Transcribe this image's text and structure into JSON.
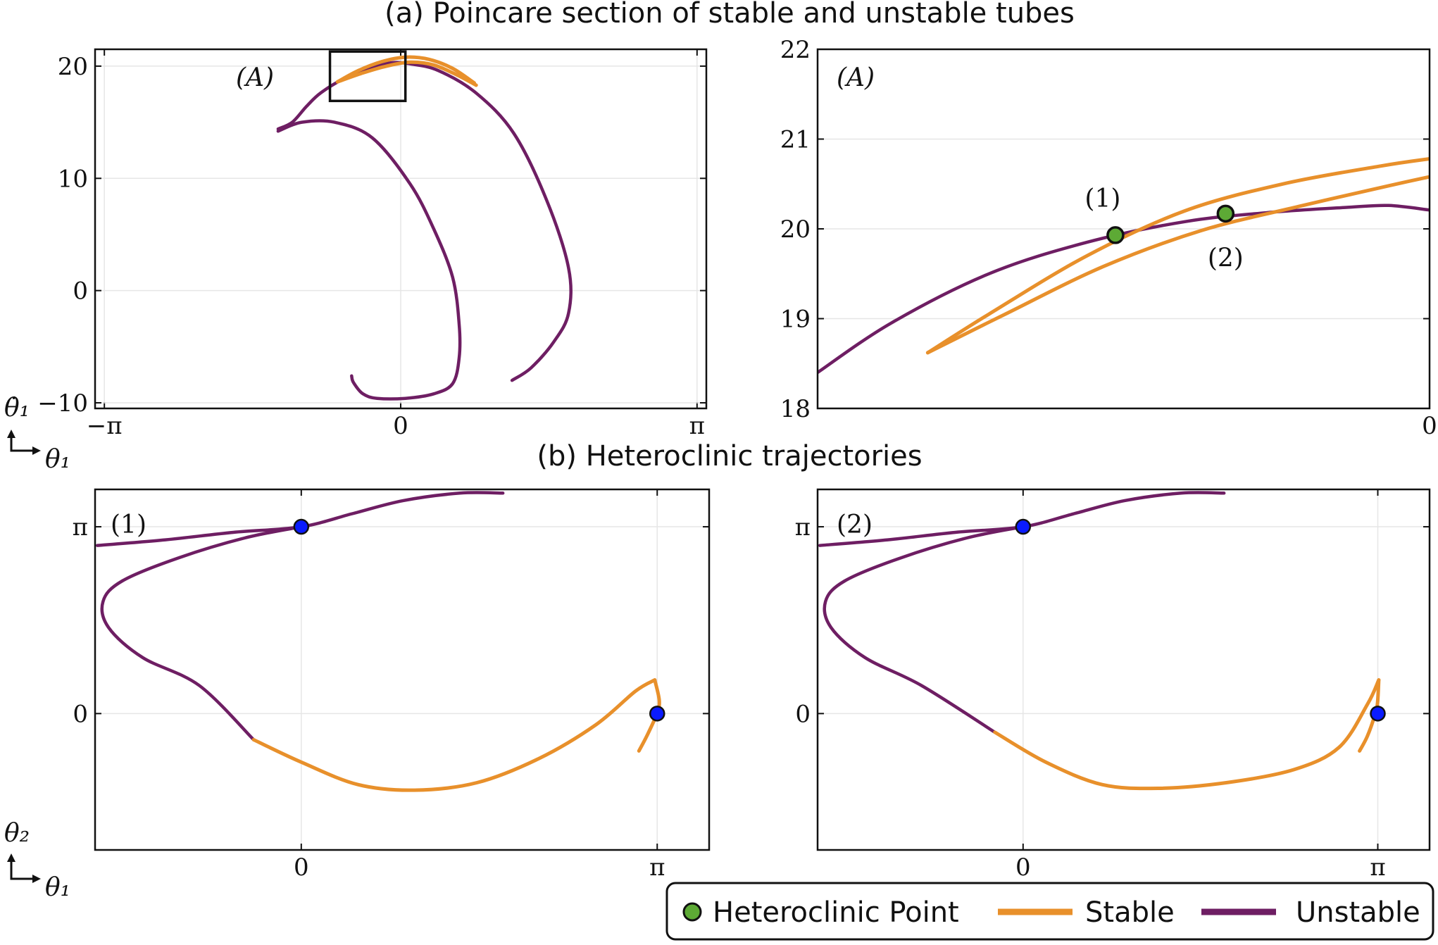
{
  "figure": {
    "title_a": "(a) Poincare section of stable and unstable tubes",
    "title_b": "(b) Heteroclinic trajectories"
  },
  "colors": {
    "stable": "#E8902B",
    "unstable": "#6E1E63",
    "heteroclinic_point": "#5DAA35",
    "equilibrium": "#0A1BFF",
    "box": "#111111"
  },
  "axes_labels": {
    "top_y": "θ̇₁",
    "top_x": "θ₁",
    "bottom_y": "θ₂",
    "bottom_x": "θ₁"
  },
  "legend": {
    "placement": "bottom-right",
    "items": [
      {
        "label": "Heteroclinic Point",
        "kind": "marker",
        "color_key": "heteroclinic_point"
      },
      {
        "label": "Stable",
        "kind": "line",
        "color_key": "stable"
      },
      {
        "label": "Unstable",
        "kind": "line",
        "color_key": "unstable"
      }
    ]
  },
  "chart_data": [
    {
      "id": "poincare_full",
      "type": "line",
      "panel_label": "(A)",
      "xlim": [
        -3.24,
        3.24
      ],
      "ylim": [
        -10.5,
        21.5
      ],
      "grid": true,
      "xticks": [
        {
          "value": -3.1416,
          "label": "−π"
        },
        {
          "value": 0,
          "label": "0"
        },
        {
          "value": 3.1416,
          "label": "π"
        }
      ],
      "yticks": [
        {
          "value": -10,
          "label": "−10"
        },
        {
          "value": 0,
          "label": "0"
        },
        {
          "value": 10,
          "label": "10"
        },
        {
          "value": 20,
          "label": "20"
        }
      ],
      "zoom_box": {
        "x": [
          -0.75,
          0.05
        ],
        "y": [
          16.9,
          21.3
        ]
      },
      "series": [
        {
          "role": "unstable",
          "points": [
            [
              -1.3,
              14.4
            ],
            [
              -1.15,
              15.0
            ],
            [
              -1.0,
              16.4
            ],
            [
              -0.85,
              17.6
            ],
            [
              -0.6,
              18.9
            ],
            [
              -0.35,
              19.8
            ],
            [
              -0.1,
              20.3
            ],
            [
              0.1,
              20.2
            ],
            [
              0.4,
              19.6
            ],
            [
              0.8,
              17.6
            ],
            [
              1.2,
              14.0
            ],
            [
              1.55,
              8.0
            ],
            [
              1.78,
              2.0
            ],
            [
              1.78,
              -2.0
            ],
            [
              1.62,
              -4.6
            ],
            [
              1.38,
              -6.9
            ],
            [
              1.18,
              -8.0
            ]
          ]
        },
        {
          "role": "unstable",
          "points": [
            [
              -1.3,
              14.2
            ],
            [
              -1.05,
              15.0
            ],
            [
              -0.7,
              15.0
            ],
            [
              -0.3,
              13.6
            ],
            [
              0.1,
              9.5
            ],
            [
              0.35,
              5.5
            ],
            [
              0.55,
              1.2
            ],
            [
              0.62,
              -3.0
            ],
            [
              0.62,
              -6.0
            ],
            [
              0.55,
              -8.3
            ],
            [
              0.35,
              -9.2
            ],
            [
              0.05,
              -9.6
            ],
            [
              -0.25,
              -9.6
            ],
            [
              -0.4,
              -9.2
            ],
            [
              -0.5,
              -8.2
            ],
            [
              -0.52,
              -7.6
            ]
          ]
        },
        {
          "role": "stable",
          "points": [
            [
              -0.67,
              18.6
            ],
            [
              -0.45,
              19.6
            ],
            [
              -0.2,
              20.4
            ],
            [
              0.05,
              20.8
            ],
            [
              0.3,
              20.6
            ],
            [
              0.55,
              19.8
            ],
            [
              0.78,
              18.5
            ]
          ]
        },
        {
          "role": "stable",
          "points": [
            [
              -0.67,
              18.6
            ],
            [
              -0.4,
              19.4
            ],
            [
              -0.15,
              20.0
            ],
            [
              0.1,
              20.35
            ],
            [
              0.35,
              20.1
            ],
            [
              0.6,
              19.2
            ],
            [
              0.8,
              18.3
            ]
          ]
        }
      ]
    },
    {
      "id": "poincare_zoom",
      "type": "line",
      "panel_label": "(A)",
      "xlim": [
        -0.75,
        0.0
      ],
      "ylim": [
        18,
        22
      ],
      "grid": true,
      "xticks": [
        {
          "value": 0,
          "label": "0"
        }
      ],
      "yticks": [
        {
          "value": 18,
          "label": "18"
        },
        {
          "value": 19,
          "label": "19"
        },
        {
          "value": 20,
          "label": "20"
        },
        {
          "value": 21,
          "label": "21"
        },
        {
          "value": 22,
          "label": "22"
        }
      ],
      "series": [
        {
          "role": "unstable",
          "points": [
            [
              -0.75,
              18.4
            ],
            [
              -0.66,
              18.95
            ],
            [
              -0.54,
              19.5
            ],
            [
              -0.42,
              19.85
            ],
            [
              -0.3,
              20.08
            ],
            [
              -0.2,
              20.18
            ],
            [
              -0.1,
              20.24
            ],
            [
              -0.05,
              20.26
            ],
            [
              0.0,
              20.21
            ]
          ]
        },
        {
          "role": "stable",
          "points": [
            [
              -0.615,
              18.62
            ],
            [
              -0.54,
              19.05
            ],
            [
              -0.42,
              19.7
            ],
            [
              -0.3,
              20.2
            ],
            [
              -0.18,
              20.5
            ],
            [
              -0.06,
              20.7
            ],
            [
              0.0,
              20.78
            ]
          ]
        },
        {
          "role": "stable",
          "points": [
            [
              -0.615,
              18.62
            ],
            [
              -0.52,
              19.05
            ],
            [
              -0.4,
              19.58
            ],
            [
              -0.28,
              19.98
            ],
            [
              -0.16,
              20.25
            ],
            [
              -0.05,
              20.48
            ],
            [
              0.0,
              20.58
            ]
          ]
        }
      ],
      "heteroclinic_points": [
        {
          "label": "(1)",
          "x": -0.385,
          "y": 19.93
        },
        {
          "label": "(2)",
          "x": -0.25,
          "y": 20.17
        }
      ]
    },
    {
      "id": "trajectory_1",
      "type": "line",
      "panel_label": "(1)",
      "xlim": [
        -1.82,
        3.6
      ],
      "ylim": [
        -0.73,
        1.2
      ],
      "grid": true,
      "xticks": [
        {
          "value": 0,
          "label": "0"
        },
        {
          "value": 3.1416,
          "label": "π"
        }
      ],
      "yticks": [
        {
          "value": 0,
          "label": "0"
        },
        {
          "value": 1.0,
          "label": "π"
        }
      ],
      "series": [
        {
          "role": "unstable",
          "points": [
            [
              -1.8,
              0.9
            ],
            [
              -1.2,
              0.93
            ],
            [
              -0.6,
              0.97
            ],
            [
              0.0,
              1.0
            ],
            [
              0.45,
              1.07
            ],
            [
              0.9,
              1.14
            ],
            [
              1.4,
              1.18
            ],
            [
              1.78,
              1.18
            ]
          ]
        },
        {
          "role": "unstable",
          "points": [
            [
              0.0,
              1.0
            ],
            [
              -0.5,
              0.94
            ],
            [
              -1.1,
              0.83
            ],
            [
              -1.58,
              0.71
            ],
            [
              -1.75,
              0.6
            ],
            [
              -1.7,
              0.46
            ],
            [
              -1.4,
              0.3
            ],
            [
              -0.9,
              0.15
            ],
            [
              -0.42,
              -0.14
            ]
          ]
        },
        {
          "role": "stable",
          "points": [
            [
              -0.42,
              -0.14
            ],
            [
              0.0,
              -0.26
            ],
            [
              0.5,
              -0.38
            ],
            [
              1.0,
              -0.41
            ],
            [
              1.55,
              -0.37
            ],
            [
              2.1,
              -0.24
            ],
            [
              2.6,
              -0.06
            ],
            [
              2.95,
              0.12
            ],
            [
              3.12,
              0.18
            ]
          ]
        },
        {
          "role": "stable",
          "points": [
            [
              3.12,
              0.18
            ],
            [
              3.16,
              0.07
            ],
            [
              3.14,
              0.0
            ],
            [
              3.05,
              -0.12
            ],
            [
              2.98,
              -0.2
            ]
          ]
        }
      ],
      "equilibria": [
        {
          "x": 0.0,
          "y": 1.0
        },
        {
          "x": 3.1416,
          "y": 0.0
        }
      ]
    },
    {
      "id": "trajectory_2",
      "type": "line",
      "panel_label": "(2)",
      "xlim": [
        -1.82,
        3.6
      ],
      "ylim": [
        -0.73,
        1.2
      ],
      "grid": true,
      "xticks": [
        {
          "value": 0,
          "label": "0"
        },
        {
          "value": 3.1416,
          "label": "π"
        }
      ],
      "yticks": [
        {
          "value": 0,
          "label": "0"
        },
        {
          "value": 1.0,
          "label": "π"
        }
      ],
      "series": [
        {
          "role": "unstable",
          "points": [
            [
              -1.8,
              0.9
            ],
            [
              -1.2,
              0.93
            ],
            [
              -0.6,
              0.97
            ],
            [
              0.0,
              1.0
            ],
            [
              0.45,
              1.07
            ],
            [
              0.9,
              1.14
            ],
            [
              1.4,
              1.18
            ],
            [
              1.78,
              1.18
            ]
          ]
        },
        {
          "role": "unstable",
          "points": [
            [
              0.0,
              1.0
            ],
            [
              -0.5,
              0.94
            ],
            [
              -1.1,
              0.83
            ],
            [
              -1.58,
              0.71
            ],
            [
              -1.75,
              0.6
            ],
            [
              -1.7,
              0.46
            ],
            [
              -1.4,
              0.3
            ],
            [
              -0.9,
              0.15
            ],
            [
              -0.25,
              -0.1
            ]
          ]
        },
        {
          "role": "stable",
          "points": [
            [
              -0.25,
              -0.1
            ],
            [
              0.2,
              -0.26
            ],
            [
              0.7,
              -0.38
            ],
            [
              1.2,
              -0.4
            ],
            [
              1.8,
              -0.37
            ],
            [
              2.4,
              -0.3
            ],
            [
              2.8,
              -0.18
            ],
            [
              3.05,
              0.05
            ],
            [
              3.15,
              0.18
            ]
          ]
        },
        {
          "role": "stable",
          "points": [
            [
              3.15,
              0.18
            ],
            [
              3.14,
              0.06
            ],
            [
              3.12,
              0.0
            ],
            [
              3.05,
              -0.12
            ],
            [
              2.98,
              -0.2
            ]
          ]
        }
      ],
      "equilibria": [
        {
          "x": 0.0,
          "y": 1.0
        },
        {
          "x": 3.1416,
          "y": 0.0
        }
      ]
    }
  ]
}
